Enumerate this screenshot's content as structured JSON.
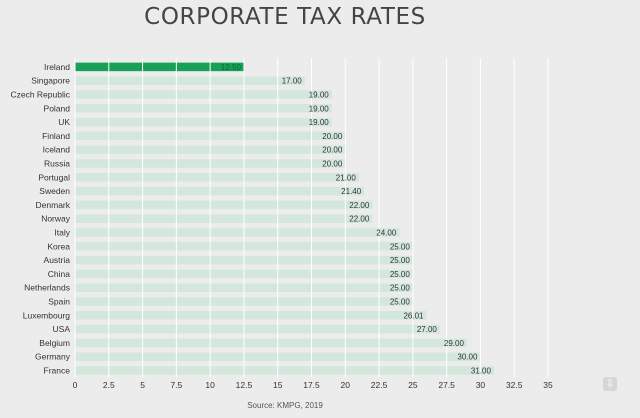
{
  "chart_data": {
    "type": "bar",
    "orientation": "horizontal",
    "title": "CORPORATE TAX RATES",
    "source": "Source: KMPG, 2019",
    "categories": [
      "Ireland",
      "Singapore",
      "Czech Republic",
      "Poland",
      "UK",
      "Finland",
      "Iceland",
      "Russia",
      "Portugal",
      "Sweden",
      "Denmark",
      "Norway",
      "Italy",
      "Korea",
      "Austria",
      "China",
      "Netherlands",
      "Spain",
      "Luxembourg",
      "USA",
      "Belgium",
      "Germany",
      "France"
    ],
    "values": [
      12.5,
      17,
      19,
      19,
      19,
      20,
      20,
      20,
      21,
      21.4,
      22,
      22,
      24,
      25,
      25,
      25,
      25,
      25,
      26.01,
      27,
      29,
      30,
      31
    ],
    "value_labels": [
      "12.50",
      "17.00",
      "19.00",
      "19.00",
      "19.00",
      "20.00",
      "20.00",
      "20.00",
      "21.00",
      "21.40",
      "22.00",
      "22.00",
      "24.00",
      "25.00",
      "25.00",
      "25.00",
      "25.00",
      "25.00",
      "26.01",
      "27.00",
      "29.00",
      "30.00",
      "31.00"
    ],
    "xlim": [
      0,
      35
    ],
    "x_ticks": [
      "0",
      "2.5",
      "5",
      "7.5",
      "10",
      "12.5",
      "15",
      "17.5",
      "20",
      "22.5",
      "25",
      "27.5",
      "30",
      "32.5",
      "35"
    ],
    "highlight_index": 0,
    "colors": {
      "bar": "#d3e7dd",
      "highlight": "#16a05a",
      "grid": "#ffffff"
    },
    "grid": true
  },
  "download_icon": "download-icon",
  "download_glyph": "⇩"
}
